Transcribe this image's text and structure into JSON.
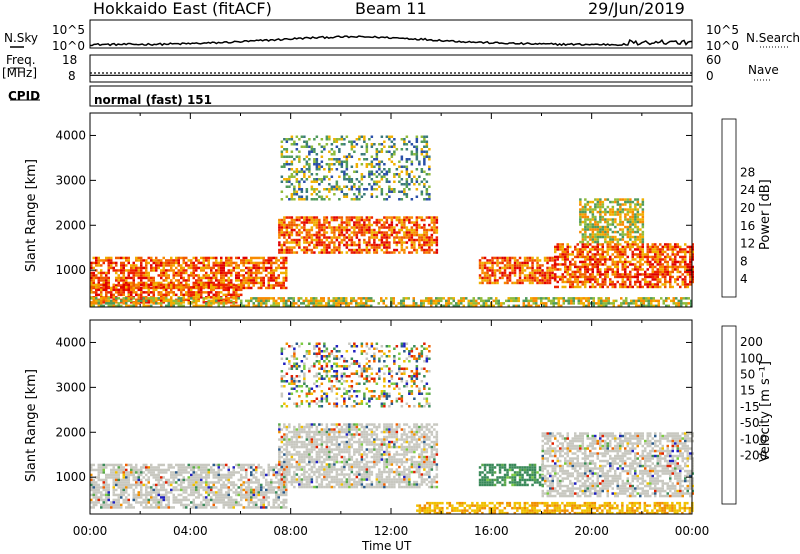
{
  "header": {
    "station": "Hokkaido East (fitACF)",
    "beam": "Beam 11",
    "date": "29/Jun/2019"
  },
  "noise_panel": {
    "left_label": "N.Sky",
    "right_label": "N.Search",
    "ticks_left": [
      "10^5",
      "10^0"
    ],
    "ticks_right": [
      "10^5",
      "10^0"
    ]
  },
  "freq_panel": {
    "left_label_1": "Freq.",
    "left_label_2": "[MHz]",
    "right_label": "Nave",
    "ticks_left": [
      "18",
      "8"
    ],
    "ticks_right": [
      "60",
      "0"
    ],
    "freq_level": 10.5,
    "nave_level": 20
  },
  "cpid": {
    "label": "CPID",
    "text": "normal (fast) 151"
  },
  "x_axis": {
    "label": "Time UT",
    "ticks": [
      "00:00",
      "04:00",
      "08:00",
      "12:00",
      "16:00",
      "20:00",
      "00:00"
    ]
  },
  "chart_data": [
    {
      "type": "heatmap",
      "name": "power",
      "ylabel": "Slant Range [km]",
      "yticks": [
        "1000",
        "2000",
        "3000",
        "4000"
      ],
      "ylim": [
        180,
        4500
      ],
      "xlim": [
        0,
        24
      ],
      "colorbar": {
        "label": "Power [dB]",
        "ticks": [
          "4",
          "8",
          "12",
          "16",
          "20",
          "24",
          "28"
        ],
        "colors": [
          "#1a1aff",
          "#2a4fa8",
          "#3a7a7a",
          "#4f9a5a",
          "#90bb3a",
          "#f0b000",
          "#f88a00",
          "#f05a00",
          "#ee2200",
          "#e00000"
        ]
      },
      "regions": [
        {
          "t0": 0.0,
          "t1": 7.8,
          "r0": 600,
          "r1": 1300,
          "level": "high"
        },
        {
          "t0": 0.0,
          "t1": 6.0,
          "r0": 300,
          "r1": 700,
          "level": "high"
        },
        {
          "t0": 7.5,
          "t1": 13.8,
          "r0": 1400,
          "r1": 2200,
          "level": "high"
        },
        {
          "t0": 7.6,
          "t1": 13.5,
          "r0": 2600,
          "r1": 4000,
          "level": "low"
        },
        {
          "t0": 15.5,
          "t1": 18.5,
          "r0": 700,
          "r1": 1300,
          "level": "high"
        },
        {
          "t0": 18.5,
          "t1": 24.0,
          "r0": 600,
          "r1": 1600,
          "level": "high"
        },
        {
          "t0": 19.5,
          "t1": 22.0,
          "r0": 1600,
          "r1": 2600,
          "level": "mid"
        },
        {
          "t0": 0.0,
          "t1": 24.0,
          "r0": 200,
          "r1": 400,
          "level": "mid"
        }
      ]
    },
    {
      "type": "heatmap",
      "name": "velocity",
      "ylabel": "Slant Range [km]",
      "yticks": [
        "1000",
        "2000",
        "3000",
        "4000"
      ],
      "ylim": [
        180,
        4500
      ],
      "xlim": [
        0,
        24
      ],
      "colorbar": {
        "label": "Velocity [m s⁻¹]",
        "ticks": [
          "200",
          "100",
          "50",
          "15",
          "-15",
          "-50",
          "-100",
          "-200"
        ],
        "colors": [
          "#2020c0",
          "#2a5a8a",
          "#3a8a5a",
          "#5aa84a",
          "#7ccc40",
          "#c8c8c0",
          "#c8c8c0",
          "#f0c000",
          "#f09000",
          "#f06000",
          "#e02000"
        ]
      },
      "regions": [
        {
          "t0": 0.0,
          "t1": 7.8,
          "r0": 300,
          "r1": 1300,
          "level": "gray"
        },
        {
          "t0": 7.5,
          "t1": 13.8,
          "r0": 800,
          "r1": 2200,
          "level": "gray"
        },
        {
          "t0": 7.6,
          "t1": 13.5,
          "r0": 2600,
          "r1": 4000,
          "level": "mixed"
        },
        {
          "t0": 15.5,
          "t1": 18.0,
          "r0": 800,
          "r1": 1300,
          "level": "green"
        },
        {
          "t0": 18.0,
          "t1": 24.0,
          "r0": 600,
          "r1": 2000,
          "level": "gray"
        },
        {
          "t0": 13.0,
          "t1": 24.0,
          "r0": 200,
          "r1": 450,
          "level": "orange"
        }
      ]
    }
  ]
}
